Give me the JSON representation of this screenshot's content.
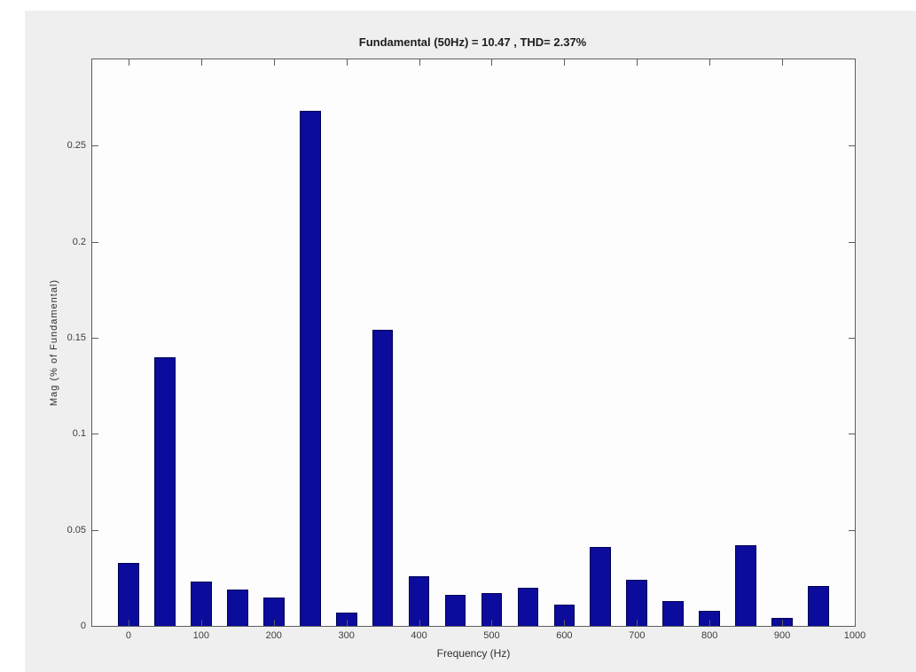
{
  "figure": {
    "panel_background": "#efefef",
    "plot_background": "#fdfdfd",
    "axis_color": "#5c5c5c",
    "tick_label_color": "#3d3d3d"
  },
  "chart_data": {
    "type": "bar",
    "title": "Fundamental (50Hz) = 10.47 , THD= 2.37%",
    "xlabel": "Frequency (Hz)",
    "ylabel": "Mag (% of Fundamental)",
    "x": [
      0,
      50,
      100,
      150,
      200,
      250,
      300,
      350,
      400,
      450,
      500,
      550,
      600,
      650,
      700,
      750,
      800,
      850,
      900,
      950
    ],
    "values": [
      0.033,
      0.14,
      0.023,
      0.019,
      0.015,
      0.268,
      0.007,
      0.154,
      0.026,
      0.016,
      0.017,
      0.02,
      0.011,
      0.041,
      0.024,
      0.013,
      0.008,
      0.042,
      0.004,
      0.021
    ],
    "xlim": [
      -50,
      1000
    ],
    "ylim": [
      0,
      0.295
    ],
    "xticks": [
      0,
      100,
      200,
      300,
      400,
      500,
      600,
      700,
      800,
      900,
      1000
    ],
    "yticks": [
      0,
      0.05,
      0.1,
      0.15,
      0.2,
      0.25
    ],
    "bar_width_hz": 29,
    "bar_color": "#0b0b9c",
    "bar_edge_color": "#000055",
    "grid": false,
    "legend": null
  }
}
